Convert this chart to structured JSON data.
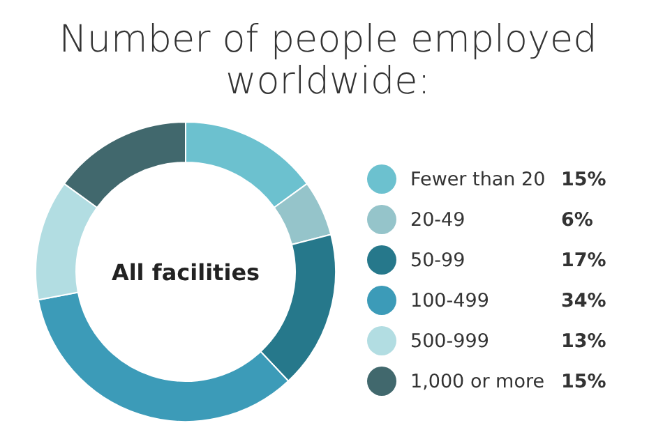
{
  "chart_data": {
    "type": "donut",
    "title": "Number of people employed worldwide:",
    "categories": [
      "Fewer than 20",
      "20-49",
      "50-99",
      "100-499",
      "500-999",
      "1,000 or more"
    ],
    "values": [
      15,
      6,
      17,
      34,
      13,
      15
    ],
    "colors": [
      "#6cc1cf",
      "#95c4ca",
      "#26788b",
      "#3c9bb8",
      "#b2dde2",
      "#41686d"
    ],
    "annotations": [
      "All facilities"
    ],
    "value_labels": [
      "15%",
      "6%",
      "17%",
      "34%",
      "13%",
      "15%"
    ],
    "legend": "right"
  }
}
